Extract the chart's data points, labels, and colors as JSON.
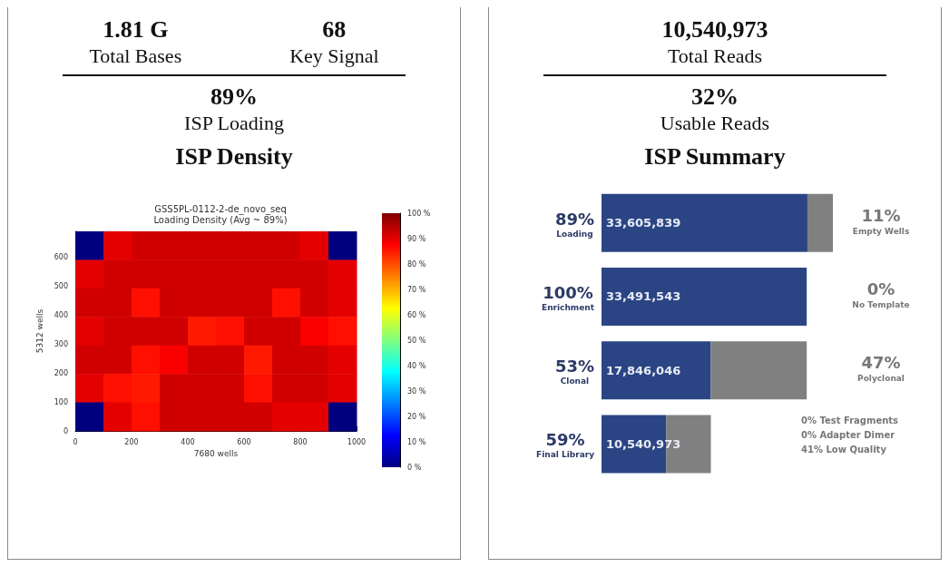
{
  "chart_data": [
    {
      "type": "other",
      "annotations": [
        "1.81 G",
        "Total Bases",
        "68",
        "Key Signal",
        "89%",
        "ISP Loading"
      ]
    },
    {
      "type": "heatmap",
      "title": "ISP Density",
      "subtitle": "GSS5PL-0112-2-de_novo_seq\nLoading Density (Avg ~ 89%)",
      "xlabel": "7680 wells",
      "ylabel": "5312 wells",
      "xlim": [
        0,
        1000
      ],
      "xticks": [
        0,
        200,
        400,
        600,
        800,
        1000
      ],
      "ylim": [
        0,
        690
      ],
      "yticks": [
        0,
        100,
        200,
        300,
        400,
        500,
        600
      ],
      "cells": [
        [
          0,
          90,
          92,
          92,
          92,
          92,
          92,
          92,
          90,
          0
        ],
        [
          90,
          92,
          92,
          92,
          92,
          92,
          92,
          92,
          92,
          90
        ],
        [
          92,
          92,
          86,
          92,
          92,
          92,
          92,
          86,
          92,
          90
        ],
        [
          90,
          92,
          92,
          92,
          85,
          86,
          92,
          92,
          88,
          86
        ],
        [
          92,
          92,
          86,
          88,
          92,
          92,
          85,
          92,
          92,
          90
        ],
        [
          90,
          86,
          85,
          92,
          92,
          92,
          86,
          92,
          92,
          90
        ],
        [
          0,
          90,
          86,
          92,
          92,
          92,
          92,
          90,
          90,
          0
        ]
      ],
      "clim": [
        0,
        100
      ],
      "cticks": [
        {
          "value": 0,
          "label": "0 %"
        },
        {
          "value": 10,
          "label": "10 %"
        },
        {
          "value": 20,
          "label": "20 %"
        },
        {
          "value": 30,
          "label": "30 %"
        },
        {
          "value": 40,
          "label": "40 %"
        },
        {
          "value": 50,
          "label": "50 %"
        },
        {
          "value": 60,
          "label": "60 %"
        },
        {
          "value": 70,
          "label": "70 %"
        },
        {
          "value": 80,
          "label": "80 %"
        },
        {
          "value": 90,
          "label": "90 %"
        },
        {
          "value": 100,
          "label": "100 %"
        }
      ]
    },
    {
      "type": "other",
      "annotations": [
        "10,540,973",
        "Total Reads",
        "32%",
        "Usable Reads"
      ]
    },
    {
      "type": "bar",
      "title": "ISP Summary",
      "orientation": "horizontal",
      "stacked": true,
      "categories": [
        "89%\nLoading",
        "100%\nEnrichment",
        "53%\nClonal",
        "59%\nFinal Library"
      ],
      "series": [
        {
          "color": "#2b4584",
          "values": [
            33605839,
            33491543,
            17846046,
            10540973
          ],
          "value_labels": [
            "33,605,839",
            "33,491,543",
            "17,846,046",
            "10,540,973"
          ]
        },
        {
          "color": "#808080",
          "values": [
            4153000,
            0,
            15645497,
            7305073
          ]
        }
      ],
      "annotations": [
        "11%\nEmpty Wells",
        "0%\nNo Template",
        "47%\nPolyclonal",
        "0% Test Fragments\n0% Adapter Dimer\n41% Low Quality"
      ]
    }
  ]
}
